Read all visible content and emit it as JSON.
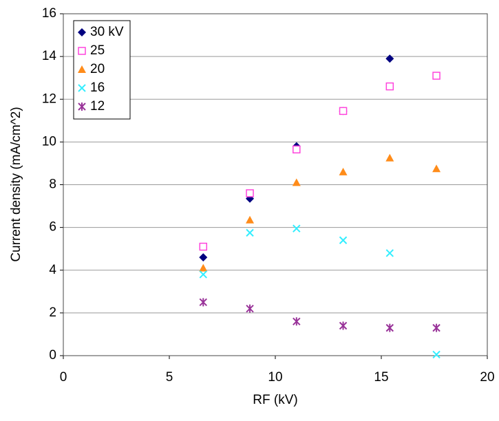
{
  "chart_data": {
    "type": "scatter",
    "xlabel": "RF (kV)",
    "ylabel": "Current density (mA/cm^2)",
    "xlim": [
      0,
      20
    ],
    "xticks": [
      0,
      5,
      10,
      15,
      20
    ],
    "ylim": [
      0,
      16
    ],
    "yticks": [
      0,
      2,
      4,
      6,
      8,
      10,
      12,
      14,
      16
    ],
    "grid": true,
    "legend": "upper left",
    "series": [
      {
        "name": "30 kV",
        "color": "#000080",
        "marker": "diamond",
        "x": [
          6.6,
          8.8,
          11,
          13.2,
          15.4
        ],
        "values": [
          4.6,
          7.35,
          9.8,
          11.45,
          13.9
        ]
      },
      {
        "name": "25",
        "color": "#ff44dd",
        "marker": "square",
        "x": [
          6.6,
          8.8,
          11,
          13.2,
          15.4,
          17.6
        ],
        "values": [
          5.1,
          7.6,
          9.65,
          11.45,
          12.6,
          13.1
        ]
      },
      {
        "name": "20",
        "color": "#ff8c1a",
        "marker": "triangle",
        "x": [
          6.6,
          8.8,
          11,
          13.2,
          15.4,
          17.6
        ],
        "values": [
          4.1,
          6.35,
          8.1,
          8.6,
          9.25,
          8.75
        ]
      },
      {
        "name": "16",
        "color": "#33eeff",
        "marker": "x",
        "x": [
          6.6,
          8.8,
          11,
          13.2,
          15.4,
          17.6
        ],
        "values": [
          3.8,
          5.75,
          5.95,
          5.4,
          4.8,
          0.05
        ]
      },
      {
        "name": "12",
        "color": "#993399",
        "marker": "star",
        "x": [
          6.6,
          8.8,
          11,
          13.2,
          15.4,
          17.6
        ],
        "values": [
          2.5,
          2.2,
          1.6,
          1.4,
          1.3,
          1.3
        ]
      }
    ]
  }
}
